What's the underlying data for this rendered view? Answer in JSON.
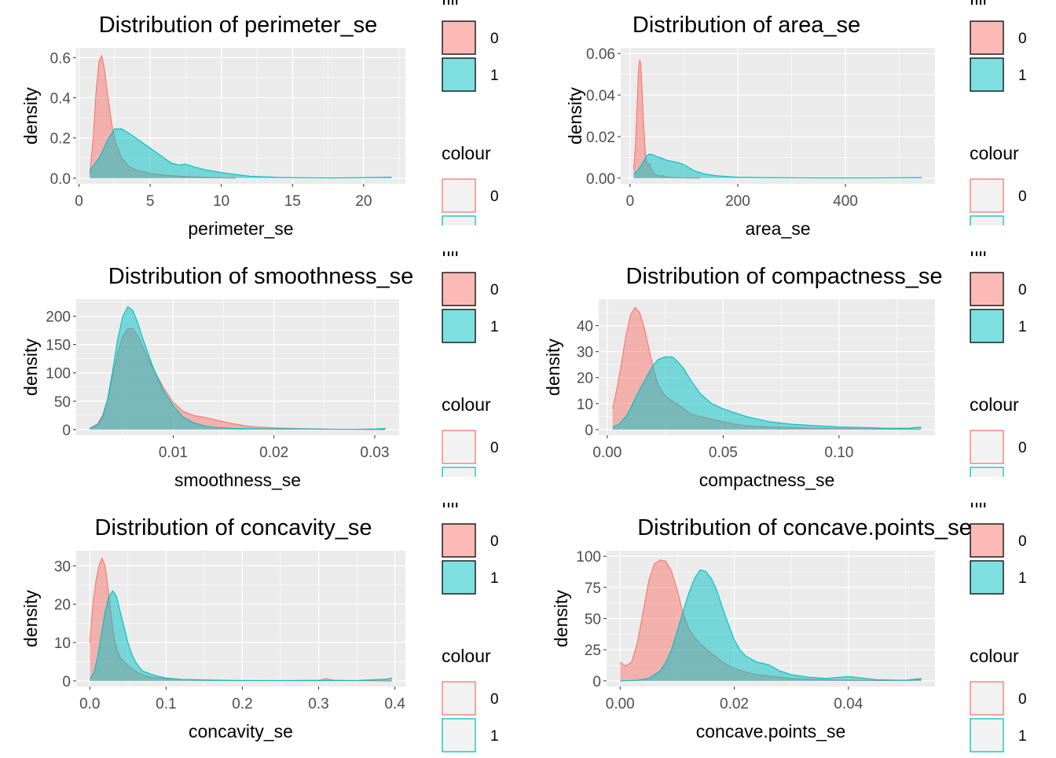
{
  "legend": {
    "fill_title": "fill",
    "colour_title": "colour",
    "keys": [
      "0",
      "1"
    ]
  },
  "colors": {
    "group_0": "#F8766D",
    "group_1": "#00BFC4",
    "panel_bg": "#EBEBEB",
    "grid": "#FFFFFF",
    "axis_text": "#4D4D4D",
    "tick": "#333333"
  },
  "chart_data": [
    {
      "type": "area",
      "title": "Distribution of perimeter_se",
      "xlabel": "perimeter_se",
      "ylabel": "density",
      "xlim": [
        0.76,
        21.98
      ],
      "ylim": [
        0,
        0.62
      ],
      "xticks": [
        0,
        5,
        10,
        15,
        20
      ],
      "xtick_labels": [
        "0",
        "5",
        "10",
        "15",
        "20"
      ],
      "yticks": [
        0,
        0.2,
        0.4,
        0.6
      ],
      "ytick_labels": [
        "0.0",
        "0.2",
        "0.4",
        "0.6"
      ],
      "series": [
        {
          "name": "0",
          "x": [
            0.76,
            1.0,
            1.2,
            1.4,
            1.6,
            1.8,
            2.0,
            2.3,
            2.6,
            3.0,
            3.5,
            4.0,
            5.0,
            6.0,
            7.5,
            9.0,
            11.0
          ],
          "y": [
            0.02,
            0.2,
            0.43,
            0.58,
            0.61,
            0.54,
            0.42,
            0.27,
            0.17,
            0.1,
            0.06,
            0.04,
            0.025,
            0.015,
            0.008,
            0.004,
            0.0
          ]
        },
        {
          "name": "1",
          "x": [
            0.76,
            1.0,
            1.5,
            2.0,
            2.5,
            3.0,
            3.5,
            4.0,
            5.0,
            6.0,
            6.5,
            7.0,
            7.5,
            8.0,
            9.0,
            10.0,
            11.0,
            12.0,
            14.0,
            16.0,
            18.0,
            20.0,
            21.98
          ],
          "y": [
            0.04,
            0.06,
            0.11,
            0.19,
            0.245,
            0.245,
            0.225,
            0.2,
            0.15,
            0.1,
            0.075,
            0.065,
            0.07,
            0.058,
            0.04,
            0.028,
            0.018,
            0.01,
            0.004,
            0.002,
            0.001,
            0.003,
            0.005
          ]
        }
      ]
    },
    {
      "type": "area",
      "title": "Distribution of area_se",
      "xlabel": "area_se",
      "ylabel": "density",
      "xlim": [
        6.8,
        542.2
      ],
      "ylim": [
        0,
        0.06
      ],
      "xticks": [
        0,
        200,
        400
      ],
      "xtick_labels": [
        "0",
        "200",
        "400"
      ],
      "yticks": [
        0,
        0.02,
        0.04,
        0.06
      ],
      "ytick_labels": [
        "0.00",
        "0.02",
        "0.04",
        "0.06"
      ],
      "series": [
        {
          "name": "0",
          "x": [
            6.8,
            10,
            13,
            16,
            18,
            20,
            22,
            24,
            26,
            28,
            30,
            33,
            36,
            40,
            45,
            50,
            55,
            60,
            70,
            80,
            100,
            130
          ],
          "y": [
            0.004,
            0.015,
            0.035,
            0.053,
            0.057,
            0.055,
            0.045,
            0.033,
            0.022,
            0.014,
            0.009,
            0.006,
            0.007,
            0.004,
            0.002,
            0.0015,
            0.001,
            0.0012,
            0.0005,
            0.0003,
            0.0001,
            0.0
          ]
        },
        {
          "name": "1",
          "x": [
            6.8,
            15,
            20,
            25,
            30,
            35,
            40,
            45,
            50,
            60,
            70,
            80,
            90,
            100,
            110,
            120,
            140,
            160,
            180,
            200,
            250,
            300,
            350,
            400,
            450,
            500,
            542.2
          ],
          "y": [
            0.002,
            0.004,
            0.006,
            0.008,
            0.0105,
            0.0115,
            0.0115,
            0.011,
            0.0105,
            0.0095,
            0.0085,
            0.008,
            0.0075,
            0.0065,
            0.005,
            0.0035,
            0.002,
            0.0012,
            0.0008,
            0.0005,
            0.0003,
            0.0002,
            0.0001,
            0.0001,
            0.0001,
            0.0002,
            0.0003
          ]
        }
      ]
    },
    {
      "type": "area",
      "title": "Distribution of smoothness_se",
      "xlabel": "smoothness_se",
      "ylabel": "density",
      "xlim": [
        0.0017,
        0.0311
      ],
      "ylim": [
        0,
        220
      ],
      "xticks": [
        0.01,
        0.02,
        0.03
      ],
      "xtick_labels": [
        "0.01",
        "0.02",
        "0.03"
      ],
      "yticks": [
        0,
        50,
        100,
        150,
        200
      ],
      "ytick_labels": [
        "0",
        "50",
        "100",
        "150",
        "200"
      ],
      "series": [
        {
          "name": "0",
          "x": [
            0.0017,
            0.0025,
            0.003,
            0.0035,
            0.004,
            0.0045,
            0.005,
            0.0055,
            0.006,
            0.0065,
            0.007,
            0.008,
            0.009,
            0.01,
            0.011,
            0.012,
            0.013,
            0.014,
            0.015,
            0.016,
            0.017,
            0.018,
            0.019,
            0.02,
            0.022,
            0.024,
            0.026,
            0.028,
            0.031
          ],
          "y": [
            2,
            10,
            25,
            55,
            95,
            135,
            165,
            178,
            178,
            165,
            145,
            108,
            75,
            48,
            32,
            25,
            22,
            18,
            14,
            10,
            7,
            5,
            4,
            3,
            2,
            1,
            0.5,
            0.3,
            0
          ]
        },
        {
          "name": "1",
          "x": [
            0.0017,
            0.0025,
            0.003,
            0.0035,
            0.004,
            0.0045,
            0.005,
            0.0055,
            0.006,
            0.0065,
            0.007,
            0.008,
            0.009,
            0.01,
            0.011,
            0.012,
            0.013,
            0.014,
            0.015,
            0.016,
            0.018,
            0.02,
            0.022,
            0.024,
            0.026,
            0.028,
            0.03,
            0.0311
          ],
          "y": [
            2,
            8,
            22,
            55,
            105,
            160,
            200,
            217,
            210,
            188,
            160,
            110,
            70,
            42,
            22,
            12,
            7,
            4,
            3,
            2,
            1.5,
            1,
            1.5,
            1,
            0.5,
            0.5,
            1,
            2
          ]
        }
      ]
    },
    {
      "type": "area",
      "title": "Distribution of compactness_se",
      "xlabel": "compactness_se",
      "ylabel": "density",
      "xlim": [
        0.0023,
        0.1354
      ],
      "ylim": [
        0,
        48
      ],
      "xticks": [
        0,
        0.05,
        0.1
      ],
      "xtick_labels": [
        "0.00",
        "0.05",
        "0.10"
      ],
      "yticks": [
        0,
        10,
        20,
        30,
        40
      ],
      "ytick_labels": [
        "0",
        "10",
        "20",
        "30",
        "40"
      ],
      "series": [
        {
          "name": "0",
          "x": [
            0.0023,
            0.004,
            0.006,
            0.008,
            0.01,
            0.012,
            0.014,
            0.016,
            0.018,
            0.02,
            0.022,
            0.025,
            0.028,
            0.03,
            0.033,
            0.036,
            0.04,
            0.045,
            0.05,
            0.055,
            0.06,
            0.07,
            0.08,
            0.09,
            0.1,
            0.11,
            0.12,
            0.1354
          ],
          "y": [
            8,
            15,
            25,
            36,
            44,
            47,
            45,
            39,
            31,
            23,
            17,
            13,
            11,
            10,
            8,
            6,
            5,
            4,
            3,
            2,
            1.5,
            1,
            0.7,
            0.5,
            0.4,
            0.3,
            0.2,
            0.1
          ]
        },
        {
          "name": "1",
          "x": [
            0.0023,
            0.005,
            0.008,
            0.01,
            0.012,
            0.015,
            0.018,
            0.02,
            0.022,
            0.025,
            0.028,
            0.03,
            0.033,
            0.036,
            0.04,
            0.045,
            0.05,
            0.055,
            0.06,
            0.065,
            0.07,
            0.08,
            0.09,
            0.1,
            0.11,
            0.12,
            0.13,
            0.1354
          ],
          "y": [
            1,
            2,
            5,
            8,
            12,
            17,
            22,
            25,
            27,
            28,
            28,
            26.5,
            23.5,
            19,
            14,
            10,
            8,
            6.5,
            5,
            4,
            3,
            2,
            1.5,
            1,
            0.8,
            0.5,
            0.5,
            1
          ]
        }
      ]
    },
    {
      "type": "area",
      "title": "Distribution of concavity_se",
      "xlabel": "concavity_se",
      "ylabel": "density",
      "xlim": [
        0,
        0.396
      ],
      "ylim": [
        0,
        32.5
      ],
      "xticks": [
        0,
        0.1,
        0.2,
        0.3,
        0.4
      ],
      "xtick_labels": [
        "0.0",
        "0.1",
        "0.2",
        "0.3",
        "0.4"
      ],
      "yticks": [
        0,
        10,
        20,
        30
      ],
      "ytick_labels": [
        "0",
        "10",
        "20",
        "30"
      ],
      "series": [
        {
          "name": "0",
          "x": [
            0,
            0.004,
            0.008,
            0.012,
            0.016,
            0.02,
            0.024,
            0.028,
            0.032,
            0.036,
            0.04,
            0.045,
            0.05,
            0.06,
            0.07,
            0.08,
            0.1,
            0.12,
            0.15,
            0.2,
            0.25,
            0.3,
            0.31,
            0.32,
            0.35,
            0.396
          ],
          "y": [
            10,
            20,
            26,
            30,
            32,
            30,
            24,
            17,
            11,
            8,
            6,
            5,
            4,
            2.5,
            1.5,
            1,
            0.6,
            0.4,
            0.3,
            0.1,
            0.1,
            0.2,
            0.6,
            0.2,
            0.1,
            0
          ]
        },
        {
          "name": "1",
          "x": [
            0,
            0.005,
            0.01,
            0.015,
            0.02,
            0.025,
            0.03,
            0.035,
            0.04,
            0.045,
            0.05,
            0.055,
            0.06,
            0.065,
            0.07,
            0.075,
            0.08,
            0.09,
            0.1,
            0.12,
            0.15,
            0.2,
            0.25,
            0.3,
            0.35,
            0.39,
            0.396
          ],
          "y": [
            0.5,
            2,
            6,
            12,
            18,
            22,
            23.5,
            22,
            18,
            14,
            10,
            7,
            5,
            3.5,
            2.5,
            2.2,
            1.8,
            1.2,
            0.8,
            0.4,
            0.2,
            0.1,
            0.05,
            0.05,
            0.1,
            0.5,
            0.8
          ]
        }
      ]
    },
    {
      "type": "area",
      "title": "Distribution of concave.points_se",
      "xlabel": "concave.points_se",
      "ylabel": "density",
      "xlim": [
        0,
        0.0528
      ],
      "ylim": [
        0,
        100
      ],
      "xticks": [
        0,
        0.02,
        0.04
      ],
      "xtick_labels": [
        "0.00",
        "0.02",
        "0.04"
      ],
      "yticks": [
        0,
        25,
        50,
        75,
        100
      ],
      "ytick_labels": [
        "0",
        "25",
        "50",
        "75",
        "100"
      ],
      "series": [
        {
          "name": "0",
          "x": [
            0,
            0.001,
            0.002,
            0.003,
            0.004,
            0.005,
            0.006,
            0.007,
            0.008,
            0.009,
            0.01,
            0.011,
            0.012,
            0.013,
            0.014,
            0.016,
            0.018,
            0.02,
            0.022,
            0.024,
            0.026,
            0.03,
            0.035,
            0.04,
            0.045,
            0.05,
            0.0528
          ],
          "y": [
            15,
            12,
            15,
            30,
            55,
            80,
            94,
            97,
            96,
            88,
            73,
            55,
            42,
            35,
            30,
            22,
            15,
            10,
            7,
            5,
            4,
            2,
            1,
            0.5,
            0.3,
            0.5,
            1
          ]
        },
        {
          "name": "1",
          "x": [
            0,
            0.003,
            0.005,
            0.007,
            0.008,
            0.009,
            0.01,
            0.011,
            0.012,
            0.013,
            0.014,
            0.015,
            0.016,
            0.017,
            0.018,
            0.019,
            0.02,
            0.021,
            0.022,
            0.024,
            0.026,
            0.028,
            0.03,
            0.033,
            0.036,
            0.04,
            0.045,
            0.05,
            0.0528
          ],
          "y": [
            0,
            0.5,
            2,
            8,
            15,
            25,
            40,
            55,
            70,
            82,
            89,
            88,
            82,
            72,
            58,
            45,
            33,
            25,
            20,
            15,
            13,
            8,
            5,
            3,
            2,
            3.5,
            1,
            0.5,
            2
          ]
        }
      ]
    }
  ]
}
